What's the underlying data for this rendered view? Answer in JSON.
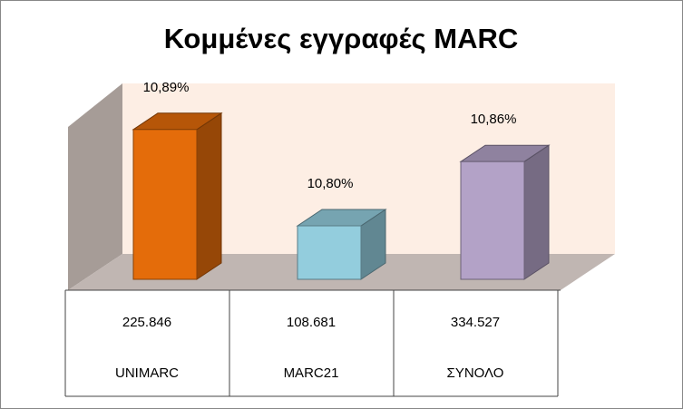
{
  "chart_data": {
    "type": "bar3d",
    "title": "Κομμένες εγγραφές MARC",
    "categories": [
      "UNIMARC",
      "MARC21",
      "ΣΥΝΟΛΟ"
    ],
    "values": [
      10.89,
      10.8,
      10.86
    ],
    "value_labels": [
      "10,89%",
      "10,80%",
      "10,86%"
    ],
    "colors": [
      "#e46c0a",
      "#93cddd",
      "#b3a2c7"
    ],
    "ylim": [
      10.75,
      10.9
    ],
    "table": {
      "rows": [
        [
          "225.846",
          "108.681",
          "334.527"
        ]
      ]
    }
  }
}
